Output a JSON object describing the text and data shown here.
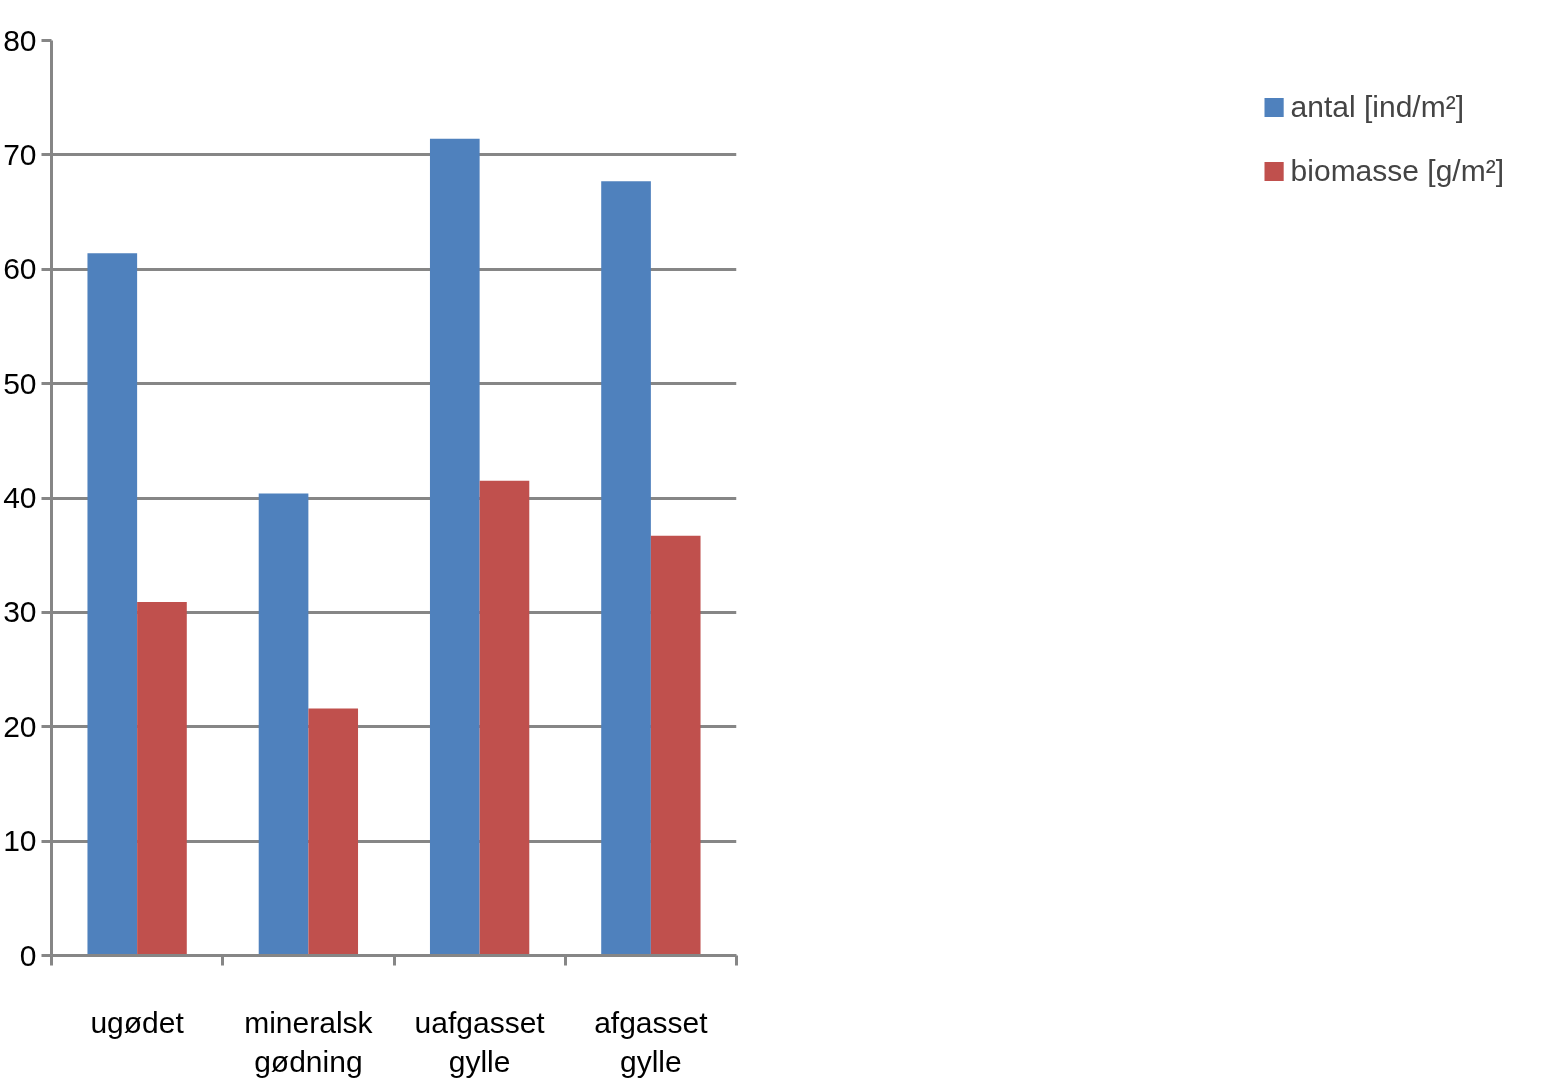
{
  "chart_data": {
    "type": "bar",
    "categories": [
      "ugødet",
      "mineralsk gødning",
      "uafgasset gylle",
      "afgasset gylle"
    ],
    "series": [
      {
        "name": "antal [ind/m²]",
        "color": "#4f81bd",
        "values": [
          61.4,
          40.4,
          71.4,
          67.7
        ]
      },
      {
        "name": "biomasse [g/m²]",
        "color": "#c0504d",
        "values": [
          30.9,
          21.6,
          41.5,
          36.7
        ]
      }
    ],
    "ylim": [
      0,
      80
    ],
    "yticks": [
      0,
      10,
      20,
      30,
      40,
      50,
      60,
      70,
      80
    ],
    "grid": "y",
    "legend": "right"
  }
}
